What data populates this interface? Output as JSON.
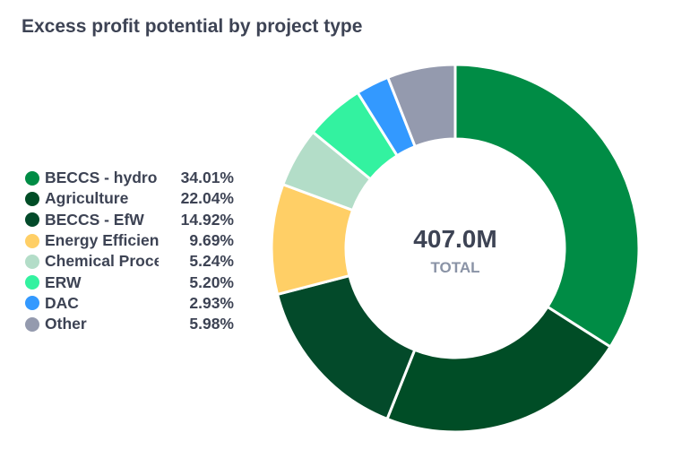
{
  "chart_data": {
    "type": "pie",
    "title": "Excess profit potential by project type",
    "categories": [
      "BECCS - hydro",
      "Agriculture",
      "BECCS - EfW",
      "Energy Efficiency",
      "Chemical Process",
      "ERW",
      "DAC",
      "Other"
    ],
    "legend_labels": [
      "BECCS - hydro",
      "Agriculture",
      "BECCS - EfW",
      "Energy Efficienc",
      "Chemical Proce",
      "ERW",
      "DAC",
      "Other"
    ],
    "values": [
      34.01,
      22.04,
      14.92,
      9.69,
      5.24,
      5.2,
      2.93,
      5.98
    ],
    "value_labels": [
      "34.01%",
      "22.04%",
      "14.92%",
      "9.69%",
      "5.24%",
      "5.20%",
      "2.93%",
      "5.98%"
    ],
    "colors": [
      "#008c45",
      "#004d26",
      "#034a2a",
      "#ffcf66",
      "#b3ddc8",
      "#33f2a0",
      "#3399ff",
      "#949aae"
    ],
    "center_value": "407.0M",
    "center_label": "TOTAL",
    "legend_position": "left",
    "donut": true
  }
}
